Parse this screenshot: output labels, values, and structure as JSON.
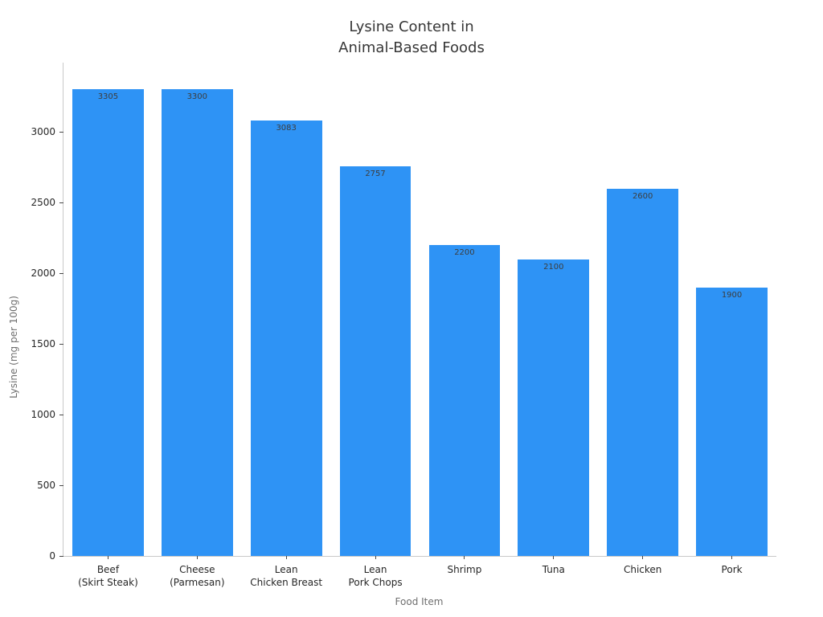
{
  "figure": {
    "background": "#ffffff"
  },
  "chart_data": {
    "type": "bar",
    "title": "Lysine Content in\nAnimal-Based Foods",
    "categories": [
      "Beef\n(Skirt Steak)",
      "Cheese\n(Parmesan)",
      "Lean\nChicken Breast",
      "Lean\nPork Chops",
      "Shrimp",
      "Tuna",
      "Chicken",
      "Pork"
    ],
    "values": [
      3305,
      3300,
      3083,
      2757,
      2200,
      2100,
      2600,
      1900
    ],
    "bar_value_labels": [
      "3305",
      "3300",
      "3083",
      "2757",
      "2200",
      "2100",
      "2600",
      "1900"
    ],
    "xlabel": "Food Item",
    "ylabel": "Lysine (mg per 100g)",
    "yticks": [
      0,
      500,
      1000,
      1500,
      2000,
      2500,
      3000
    ],
    "ylim": [
      0,
      3490
    ],
    "grid": false,
    "legend": null,
    "bar_color": "#2E93F5",
    "spine_color": "#c9c9c9",
    "tick_color": "#474747",
    "tick_label_color": "#262626",
    "axis_label_color": "#6e6e6e",
    "title_color": "#373737",
    "bar_label_color": "#3d3d3d"
  }
}
